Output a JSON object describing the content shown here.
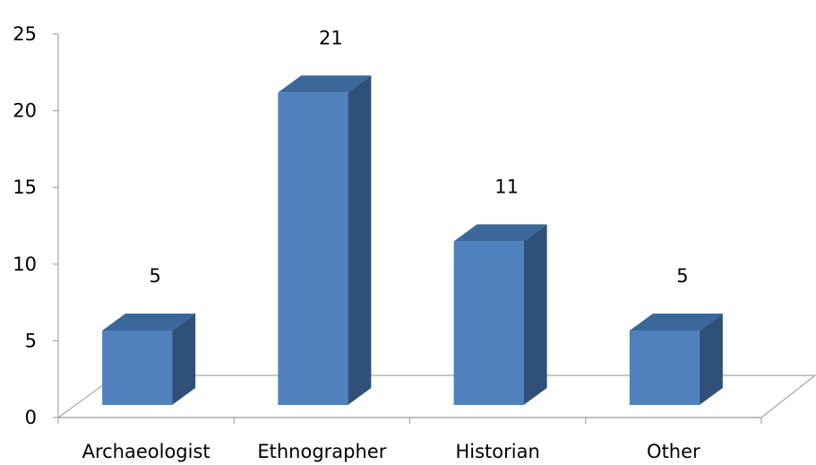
{
  "chart_data": {
    "type": "bar",
    "style": "3d-column",
    "categories": [
      "Archaeologist",
      "Ethnographer",
      "Historian",
      "Other"
    ],
    "values": [
      5,
      21,
      11,
      5
    ],
    "data_labels": [
      "5",
      "21",
      "11",
      "5"
    ],
    "ylim": [
      0,
      25
    ],
    "yticks": [
      0,
      5,
      10,
      15,
      20,
      25
    ],
    "ytick_labels": [
      "0",
      "5",
      "10",
      "15",
      "20",
      "25"
    ],
    "title": "",
    "xlabel": "",
    "ylabel": "",
    "grid": false,
    "legend": "none",
    "colors": {
      "front": "#4F81BD",
      "side": "#2F5179",
      "top": "#3B679B",
      "axis": "#A6A6A6"
    }
  }
}
